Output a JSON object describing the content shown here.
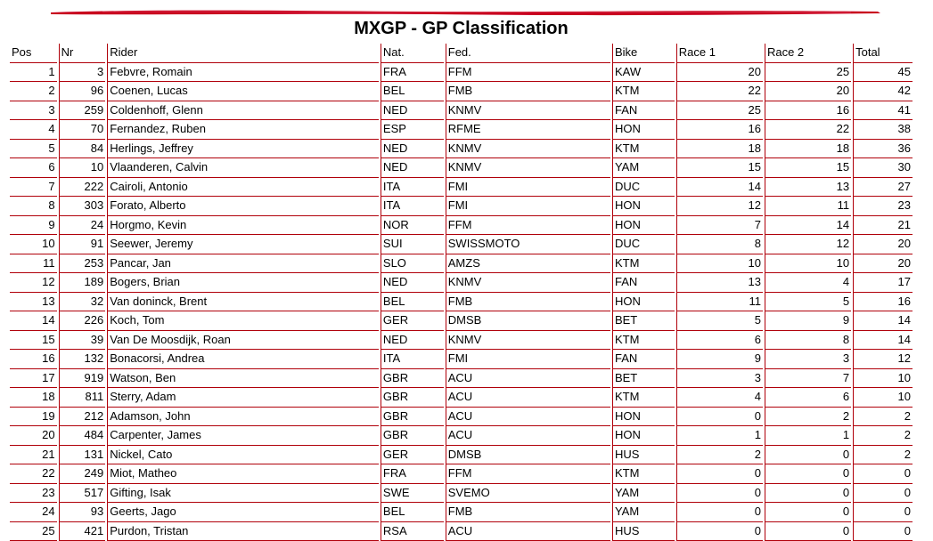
{
  "title": "MXGP - GP Classification",
  "colors": {
    "accent": "#c8001e",
    "border": "#b0000a"
  },
  "columns": [
    "Pos",
    "Nr",
    "Rider",
    "Nat.",
    "Fed.",
    "Bike",
    "Race 1",
    "Race 2",
    "Total"
  ],
  "rows": [
    [
      "1",
      "3",
      "Febvre, Romain",
      "FRA",
      "FFM",
      "KAW",
      "20",
      "25",
      "45"
    ],
    [
      "2",
      "96",
      "Coenen, Lucas",
      "BEL",
      "FMB",
      "KTM",
      "22",
      "20",
      "42"
    ],
    [
      "3",
      "259",
      "Coldenhoff, Glenn",
      "NED",
      "KNMV",
      "FAN",
      "25",
      "16",
      "41"
    ],
    [
      "4",
      "70",
      "Fernandez, Ruben",
      "ESP",
      "RFME",
      "HON",
      "16",
      "22",
      "38"
    ],
    [
      "5",
      "84",
      "Herlings, Jeffrey",
      "NED",
      "KNMV",
      "KTM",
      "18",
      "18",
      "36"
    ],
    [
      "6",
      "10",
      "Vlaanderen, Calvin",
      "NED",
      "KNMV",
      "YAM",
      "15",
      "15",
      "30"
    ],
    [
      "7",
      "222",
      "Cairoli, Antonio",
      "ITA",
      "FMI",
      "DUC",
      "14",
      "13",
      "27"
    ],
    [
      "8",
      "303",
      "Forato, Alberto",
      "ITA",
      "FMI",
      "HON",
      "12",
      "11",
      "23"
    ],
    [
      "9",
      "24",
      "Horgmo, Kevin",
      "NOR",
      "FFM",
      "HON",
      "7",
      "14",
      "21"
    ],
    [
      "10",
      "91",
      "Seewer, Jeremy",
      "SUI",
      "SWISSMOTO",
      "DUC",
      "8",
      "12",
      "20"
    ],
    [
      "11",
      "253",
      "Pancar, Jan",
      "SLO",
      "AMZS",
      "KTM",
      "10",
      "10",
      "20"
    ],
    [
      "12",
      "189",
      "Bogers, Brian",
      "NED",
      "KNMV",
      "FAN",
      "13",
      "4",
      "17"
    ],
    [
      "13",
      "32",
      "Van doninck, Brent",
      "BEL",
      "FMB",
      "HON",
      "11",
      "5",
      "16"
    ],
    [
      "14",
      "226",
      "Koch, Tom",
      "GER",
      "DMSB",
      "BET",
      "5",
      "9",
      "14"
    ],
    [
      "15",
      "39",
      "Van De Moosdijk, Roan",
      "NED",
      "KNMV",
      "KTM",
      "6",
      "8",
      "14"
    ],
    [
      "16",
      "132",
      "Bonacorsi, Andrea",
      "ITA",
      "FMI",
      "FAN",
      "9",
      "3",
      "12"
    ],
    [
      "17",
      "919",
      "Watson, Ben",
      "GBR",
      "ACU",
      "BET",
      "3",
      "7",
      "10"
    ],
    [
      "18",
      "811",
      "Sterry, Adam",
      "GBR",
      "ACU",
      "KTM",
      "4",
      "6",
      "10"
    ],
    [
      "19",
      "212",
      "Adamson, John",
      "GBR",
      "ACU",
      "HON",
      "0",
      "2",
      "2"
    ],
    [
      "20",
      "484",
      "Carpenter, James",
      "GBR",
      "ACU",
      "HON",
      "1",
      "1",
      "2"
    ],
    [
      "21",
      "131",
      "Nickel, Cato",
      "GER",
      "DMSB",
      "HUS",
      "2",
      "0",
      "2"
    ],
    [
      "22",
      "249",
      "Miot, Matheo",
      "FRA",
      "FFM",
      "KTM",
      "0",
      "0",
      "0"
    ],
    [
      "23",
      "517",
      "Gifting, Isak",
      "SWE",
      "SVEMO",
      "YAM",
      "0",
      "0",
      "0"
    ],
    [
      "24",
      "93",
      "Geerts, Jago",
      "BEL",
      "FMB",
      "YAM",
      "0",
      "0",
      "0"
    ],
    [
      "25",
      "421",
      "Purdon, Tristan",
      "RSA",
      "ACU",
      "HUS",
      "0",
      "0",
      "0"
    ]
  ]
}
